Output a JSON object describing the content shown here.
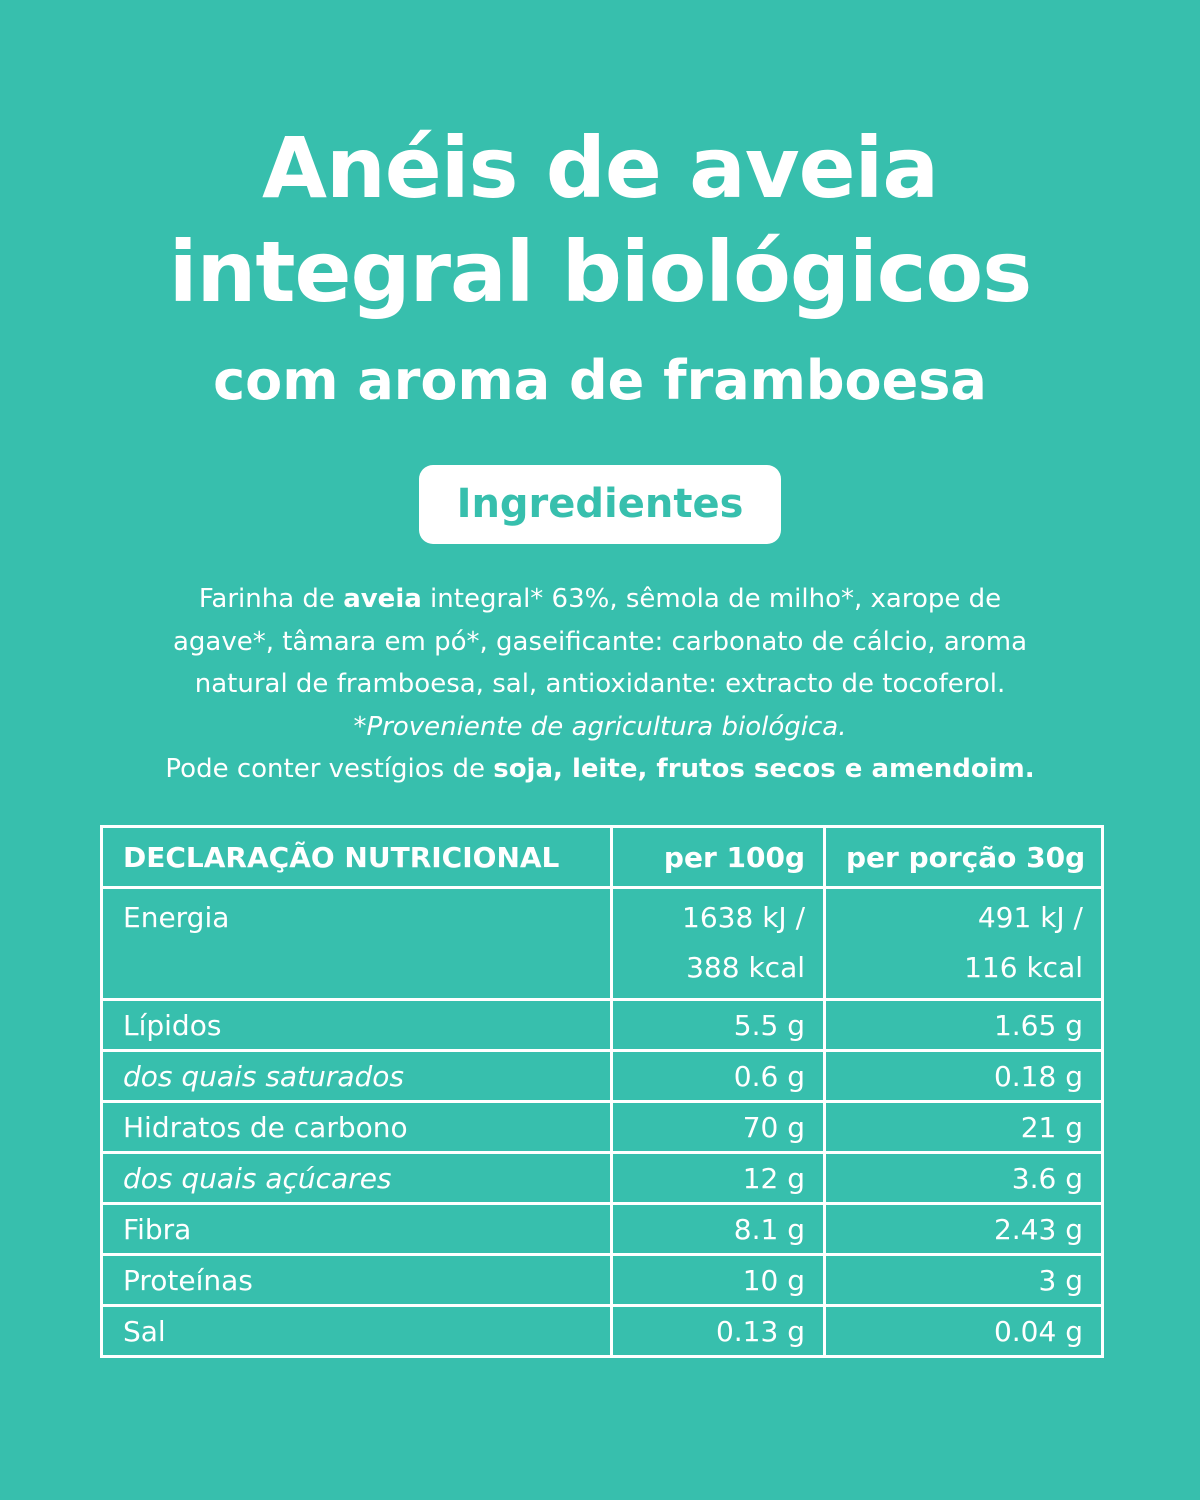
{
  "title": {
    "line1": "Anéis de aveia",
    "line2": "integral biológicos",
    "line3": "com aroma de framboesa"
  },
  "ingredients_badge": "Ingredientes",
  "ingredients": {
    "l1a": "Farinha de ",
    "l1b": "aveia",
    "l1c": " integral* 63%, sêmola de milho*, xarope de",
    "l2": "agave*, tâmara em pó*, gaseificante: carbonato de cálcio, aroma",
    "l3": "natural de framboesa, sal, antioxidante: extracto de tocoferol.",
    "l4": "*Proveniente de agricultura biológica.",
    "l5a": "Pode conter vestígios de ",
    "l5b": "soja, leite, frutos secos e amendoim."
  },
  "table": {
    "headers": [
      "DECLARAÇÃO NUTRICIONAL",
      "per 100g",
      "per porção 30g"
    ],
    "energy": {
      "label": "Energia",
      "per100_kj": "1638 kJ /",
      "per100_kcal": "388 kcal",
      "portion_kj": "491 kJ /",
      "portion_kcal": "116 kcal"
    },
    "rows": [
      {
        "label": "Lípidos",
        "per100": "5.5 g",
        "portion": "1.65 g"
      },
      {
        "label": "dos quais saturados",
        "per100": "0.6 g",
        "portion": "0.18 g"
      },
      {
        "label": "Hidratos de carbono",
        "per100": "70 g",
        "portion": "21 g"
      },
      {
        "label": "dos quais açúcares",
        "per100": "12 g",
        "portion": "3.6 g"
      },
      {
        "label": "Fibra",
        "per100": "8.1 g",
        "portion": "2.43 g"
      },
      {
        "label": "Proteínas",
        "per100": "10 g",
        "portion": "3 g"
      },
      {
        "label": "Sal",
        "per100": "0.13 g",
        "portion": "0.04 g"
      }
    ]
  },
  "colors": {
    "background": "#37bfad",
    "text": "#ffffff"
  }
}
